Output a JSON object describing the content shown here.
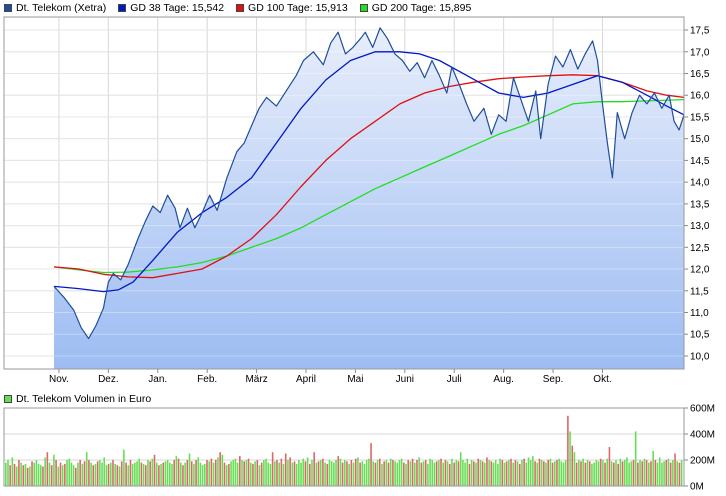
{
  "legend": {
    "items": [
      {
        "label": "Dt. Telekom (Xetra)",
        "color": "#1f4e9c"
      },
      {
        "label": "GD 38 Tage: 15,542",
        "color": "#0018c8"
      },
      {
        "label": "GD 100 Tage: 15,913",
        "color": "#e01010"
      },
      {
        "label": "GD 200 Tage: 15,895",
        "color": "#22dd22"
      }
    ]
  },
  "volume_legend": {
    "label": "Dt. Telekom Volumen in Euro",
    "color": "#66dd55"
  },
  "chart_data": [
    {
      "type": "line",
      "title": "",
      "xlabel": "",
      "ylabel": "",
      "ylim": [
        9.7,
        17.8
      ],
      "x_ticks": [
        "Nov.",
        "Dez.",
        "Jan.",
        "Feb.",
        "März",
        "April",
        "Mai",
        "Juni",
        "Juli",
        "Aug.",
        "Sep.",
        "Okt."
      ],
      "y_ticks": [
        "10,0",
        "10,5",
        "11,0",
        "11,5",
        "12,0",
        "12,5",
        "13,0",
        "13,5",
        "14,0",
        "14,5",
        "15,0",
        "15,5",
        "16,0",
        "16,5",
        "17,0",
        "17,5"
      ],
      "grid": true,
      "series": [
        {
          "name": "Dt. Telekom (Xetra)",
          "color": "#1f4e9c",
          "points": [
            [
              0,
              11.6
            ],
            [
              0.2,
              11.35
            ],
            [
              0.4,
              11.05
            ],
            [
              0.55,
              10.65
            ],
            [
              0.7,
              10.4
            ],
            [
              0.85,
              10.7
            ],
            [
              1.0,
              11.1
            ],
            [
              1.1,
              11.7
            ],
            [
              1.2,
              11.9
            ],
            [
              1.35,
              11.75
            ],
            [
              1.5,
              12.1
            ],
            [
              1.7,
              12.7
            ],
            [
              1.85,
              13.1
            ],
            [
              2.0,
              13.45
            ],
            [
              2.15,
              13.3
            ],
            [
              2.3,
              13.7
            ],
            [
              2.45,
              13.4
            ],
            [
              2.55,
              12.95
            ],
            [
              2.7,
              13.4
            ],
            [
              2.85,
              12.95
            ],
            [
              3.0,
              13.3
            ],
            [
              3.15,
              13.7
            ],
            [
              3.3,
              13.35
            ],
            [
              3.5,
              14.1
            ],
            [
              3.7,
              14.7
            ],
            [
              3.85,
              14.9
            ],
            [
              4.0,
              15.3
            ],
            [
              4.15,
              15.7
            ],
            [
              4.3,
              15.95
            ],
            [
              4.5,
              15.75
            ],
            [
              4.7,
              16.1
            ],
            [
              4.9,
              16.45
            ],
            [
              5.05,
              16.8
            ],
            [
              5.25,
              17.0
            ],
            [
              5.45,
              16.7
            ],
            [
              5.6,
              17.2
            ],
            [
              5.75,
              17.45
            ],
            [
              5.9,
              16.95
            ],
            [
              6.05,
              17.1
            ],
            [
              6.2,
              17.3
            ],
            [
              6.3,
              17.45
            ],
            [
              6.45,
              17.1
            ],
            [
              6.6,
              17.55
            ],
            [
              6.75,
              17.3
            ],
            [
              6.9,
              16.95
            ],
            [
              7.05,
              16.8
            ],
            [
              7.2,
              16.55
            ],
            [
              7.35,
              16.75
            ],
            [
              7.5,
              16.4
            ],
            [
              7.65,
              16.8
            ],
            [
              7.8,
              16.45
            ],
            [
              7.95,
              16.05
            ],
            [
              8.05,
              16.65
            ],
            [
              8.2,
              16.25
            ],
            [
              8.35,
              15.8
            ],
            [
              8.5,
              15.4
            ],
            [
              8.7,
              15.7
            ],
            [
              8.85,
              15.1
            ],
            [
              9.0,
              15.55
            ],
            [
              9.15,
              15.4
            ],
            [
              9.3,
              16.4
            ],
            [
              9.45,
              15.9
            ],
            [
              9.6,
              15.4
            ],
            [
              9.75,
              16.1
            ],
            [
              9.85,
              15.0
            ],
            [
              10.0,
              16.25
            ],
            [
              10.15,
              16.9
            ],
            [
              10.3,
              16.65
            ],
            [
              10.45,
              17.05
            ],
            [
              10.6,
              16.6
            ],
            [
              10.75,
              16.95
            ],
            [
              10.9,
              17.25
            ],
            [
              11.0,
              16.8
            ],
            [
              11.1,
              15.8
            ],
            [
              11.2,
              14.9
            ],
            [
              11.3,
              14.1
            ],
            [
              11.4,
              15.6
            ],
            [
              11.55,
              15.0
            ],
            [
              11.7,
              15.6
            ],
            [
              11.85,
              16.0
            ],
            [
              12.0,
              15.8
            ],
            [
              12.15,
              16.05
            ],
            [
              12.3,
              15.7
            ],
            [
              12.45,
              16.0
            ],
            [
              12.55,
              15.4
            ],
            [
              12.65,
              15.2
            ],
            [
              12.75,
              15.55
            ]
          ]
        },
        {
          "name": "GD 38 Tage: 15,542",
          "color": "#0018c8",
          "points": [
            [
              0,
              11.6
            ],
            [
              0.5,
              11.55
            ],
            [
              1.0,
              11.48
            ],
            [
              1.3,
              11.52
            ],
            [
              1.6,
              11.7
            ],
            [
              2.0,
              12.2
            ],
            [
              2.5,
              12.85
            ],
            [
              3.0,
              13.3
            ],
            [
              3.5,
              13.65
            ],
            [
              4.0,
              14.1
            ],
            [
              4.5,
              14.9
            ],
            [
              5.0,
              15.7
            ],
            [
              5.5,
              16.35
            ],
            [
              6.0,
              16.8
            ],
            [
              6.5,
              17.0
            ],
            [
              7.0,
              17.0
            ],
            [
              7.4,
              16.95
            ],
            [
              7.8,
              16.8
            ],
            [
              8.2,
              16.55
            ],
            [
              8.6,
              16.3
            ],
            [
              9.0,
              16.05
            ],
            [
              9.5,
              15.95
            ],
            [
              10.0,
              16.05
            ],
            [
              10.5,
              16.25
            ],
            [
              11.0,
              16.45
            ],
            [
              11.5,
              16.3
            ],
            [
              12.0,
              16.0
            ],
            [
              12.4,
              15.75
            ],
            [
              12.75,
              15.55
            ]
          ]
        },
        {
          "name": "GD 100 Tage: 15,913",
          "color": "#e01010",
          "points": [
            [
              0,
              12.05
            ],
            [
              0.5,
              12.0
            ],
            [
              1.0,
              11.88
            ],
            [
              1.5,
              11.82
            ],
            [
              2.0,
              11.8
            ],
            [
              2.5,
              11.9
            ],
            [
              3.0,
              12.0
            ],
            [
              3.5,
              12.3
            ],
            [
              4.0,
              12.7
            ],
            [
              4.5,
              13.25
            ],
            [
              5.0,
              13.9
            ],
            [
              5.5,
              14.5
            ],
            [
              6.0,
              15.0
            ],
            [
              6.5,
              15.4
            ],
            [
              7.0,
              15.8
            ],
            [
              7.5,
              16.05
            ],
            [
              8.0,
              16.2
            ],
            [
              8.5,
              16.3
            ],
            [
              9.0,
              16.38
            ],
            [
              9.5,
              16.42
            ],
            [
              10.0,
              16.45
            ],
            [
              10.5,
              16.47
            ],
            [
              11.0,
              16.45
            ],
            [
              11.5,
              16.3
            ],
            [
              12.0,
              16.1
            ],
            [
              12.4,
              16.0
            ],
            [
              12.75,
              15.95
            ]
          ]
        },
        {
          "name": "GD 200 Tage: 15,895",
          "color": "#22dd22",
          "points": [
            [
              0,
              12.05
            ],
            [
              0.5,
              11.98
            ],
            [
              1.0,
              11.92
            ],
            [
              1.5,
              11.93
            ],
            [
              2.0,
              11.98
            ],
            [
              2.5,
              12.05
            ],
            [
              3.0,
              12.15
            ],
            [
              3.5,
              12.3
            ],
            [
              4.0,
              12.5
            ],
            [
              4.5,
              12.7
            ],
            [
              5.0,
              12.95
            ],
            [
              5.5,
              13.25
            ],
            [
              6.0,
              13.55
            ],
            [
              6.5,
              13.85
            ],
            [
              7.0,
              14.1
            ],
            [
              7.5,
              14.35
            ],
            [
              8.0,
              14.6
            ],
            [
              8.5,
              14.85
            ],
            [
              9.0,
              15.1
            ],
            [
              9.5,
              15.3
            ],
            [
              10.0,
              15.55
            ],
            [
              10.5,
              15.8
            ],
            [
              11.0,
              15.85
            ],
            [
              11.5,
              15.85
            ],
            [
              12.0,
              15.87
            ],
            [
              12.75,
              15.9
            ]
          ]
        }
      ]
    },
    {
      "type": "bar",
      "title": "",
      "ylabel": "",
      "ylim": [
        0,
        600
      ],
      "y_ticks": [
        "0M",
        "200M",
        "400M",
        "600M"
      ],
      "grid": true,
      "series": [
        {
          "name": "Dt. Telekom Volumen in Euro",
          "color": "#66dd55",
          "down_color": "#dd6666",
          "values": [
            180,
            200,
            160,
            220,
            170,
            150,
            200,
            180,
            160,
            170,
            140,
            150,
            190,
            180,
            200,
            170,
            160,
            150,
            220,
            260,
            180,
            160,
            240,
            200,
            150,
            180,
            160,
            170,
            200,
            210,
            180,
            160,
            140,
            180,
            200,
            170,
            190,
            260,
            200,
            180,
            160,
            170,
            190,
            200,
            180,
            220,
            160,
            170,
            180,
            200,
            170,
            160,
            150,
            190,
            280,
            180,
            160,
            200,
            170,
            180,
            190,
            210,
            180,
            170,
            160,
            200,
            190,
            210,
            240,
            180,
            160,
            170,
            180,
            190,
            200,
            180,
            170,
            200,
            230,
            210,
            180,
            160,
            180,
            200,
            250,
            190,
            170,
            200,
            220,
            180,
            160,
            170,
            200,
            190,
            210,
            180,
            200,
            220,
            260,
            240,
            180,
            160,
            170,
            190,
            200,
            210,
            180,
            230,
            200,
            190,
            200,
            210,
            180,
            170,
            190,
            200,
            160,
            180,
            200,
            210,
            180,
            170,
            260,
            190,
            200,
            180,
            210,
            170,
            250,
            200,
            220,
            180,
            190,
            170,
            200,
            180,
            210,
            190,
            220,
            170,
            200,
            260,
            180,
            190,
            200,
            210,
            180,
            170,
            200,
            190,
            180,
            200,
            230,
            210,
            180,
            200,
            190,
            170,
            200,
            180,
            210,
            220,
            180,
            190,
            170,
            200,
            210,
            330,
            190,
            180,
            200,
            210,
            170,
            190,
            200,
            180,
            210,
            200,
            190,
            180,
            200,
            210,
            180,
            170,
            200,
            190,
            210,
            180,
            200,
            220,
            180,
            190,
            200,
            170,
            210,
            200,
            180,
            190,
            200,
            210,
            180,
            200,
            190,
            170,
            210,
            180,
            200,
            190,
            260,
            200,
            180,
            210,
            170,
            200,
            190,
            180,
            210,
            200,
            190,
            180,
            220,
            200,
            190,
            180,
            200,
            170,
            210,
            200,
            180,
            190,
            200,
            210,
            180,
            200,
            190,
            170,
            200,
            210,
            180,
            220,
            200,
            230,
            190,
            180,
            210,
            200,
            190,
            180,
            200,
            210,
            180,
            190,
            200,
            210,
            190,
            180,
            200,
            540,
            420,
            310,
            260,
            180,
            200,
            190,
            210,
            180,
            200,
            190,
            170,
            180,
            200,
            190,
            210,
            200,
            180,
            210,
            300,
            190,
            180,
            200,
            170,
            210,
            190,
            200,
            220,
            180,
            190,
            200,
            420,
            180,
            200,
            190,
            210,
            200,
            180,
            190,
            270,
            200,
            180,
            220,
            180,
            190,
            200,
            210,
            180,
            200,
            250,
            190,
            180,
            200
          ]
        }
      ]
    }
  ]
}
